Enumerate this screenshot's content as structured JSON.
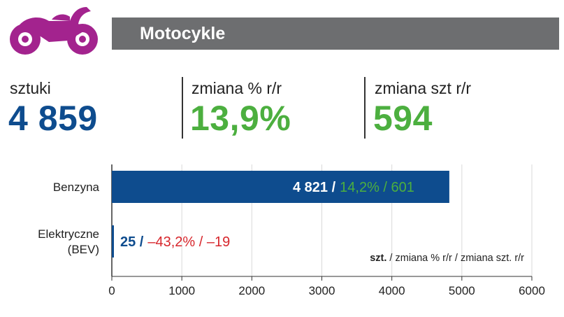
{
  "header": {
    "title": "Motocykle",
    "icon": "motorcycle-icon",
    "icon_color": "#a3238e",
    "bar_color": "#6d6e70"
  },
  "kpis": [
    {
      "label": "sztuki",
      "value": "4 859",
      "color": "#0e4c8e"
    },
    {
      "label": "zmiana % r/r",
      "value": "13,9%",
      "color": "#4caf3f"
    },
    {
      "label": "zmiana szt r/r",
      "value": "594",
      "color": "#4caf3f"
    }
  ],
  "chart_data": {
    "type": "bar",
    "orientation": "horizontal",
    "categories": [
      "Benzyna",
      "Elektryczne (BEV)"
    ],
    "category_lines": [
      [
        "Benzyna"
      ],
      [
        "Elektryczne",
        "(BEV)"
      ]
    ],
    "values": [
      4821,
      25
    ],
    "labels": [
      {
        "units": "4 821 /",
        "change": "14,2% / 601",
        "change_color": "#4caf3f"
      },
      {
        "units": "25 /",
        "change": "–43,2% / –19",
        "change_color": "#d7262c"
      }
    ],
    "bar_color": "#0e4c8e",
    "xlim": [
      0,
      6000
    ],
    "xticks": [
      0,
      1000,
      2000,
      3000,
      4000,
      5000,
      6000
    ],
    "grid": true,
    "legend_note": {
      "bold": "szt.",
      "rest": " / zmiana % r/r / zmiana szt. r/r"
    }
  }
}
